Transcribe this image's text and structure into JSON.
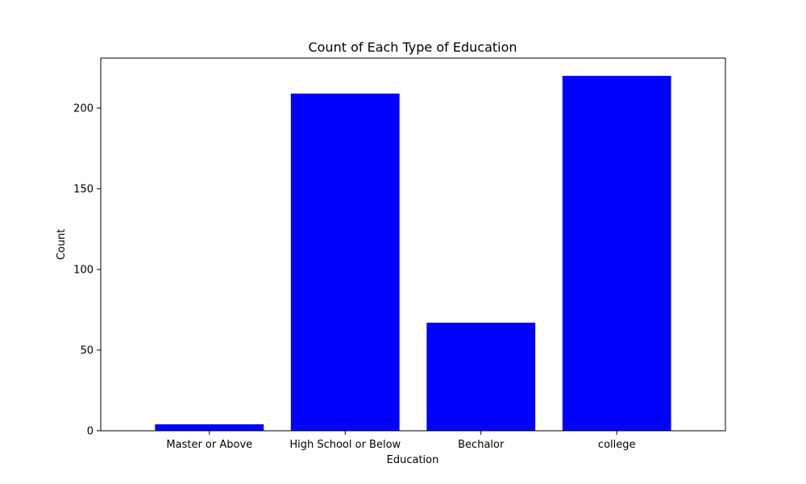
{
  "chart_data": {
    "type": "bar",
    "title": "Count of Each Type of Education",
    "xlabel": "Education",
    "ylabel": "Count",
    "categories": [
      "Master or Above",
      "High School or Below",
      "Bechalor",
      "college"
    ],
    "values": [
      4,
      209,
      67,
      220
    ],
    "ylim": [
      0,
      231
    ],
    "yticks": [
      0,
      50,
      100,
      150,
      200
    ],
    "grid": false,
    "bar_color": "#0000ff"
  }
}
